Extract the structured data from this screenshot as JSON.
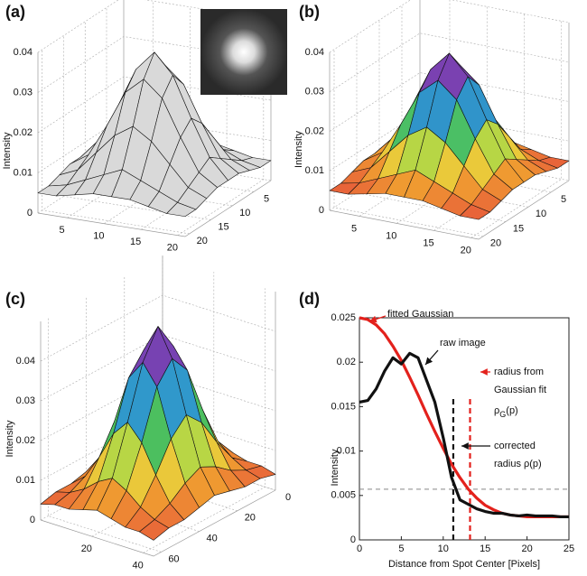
{
  "chart_data": [
    {
      "type": "surface3d",
      "label": "(a)",
      "zlabel": "Intensity",
      "surface_color": "#d9d9d9",
      "x": [
        1,
        3.5,
        6,
        8.5,
        11,
        13.5,
        16,
        18.5,
        21
      ],
      "y": [
        1,
        3.5,
        6,
        8.5,
        11,
        13.5,
        16,
        18.5,
        21
      ],
      "xlim": [
        1,
        21
      ],
      "ylim": [
        1,
        21
      ],
      "zlim": [
        0,
        0.04
      ],
      "xticks": [
        5,
        10,
        15,
        20
      ],
      "yticks": [
        5,
        10,
        15,
        20
      ],
      "zticks": [
        0,
        0.01,
        0.02,
        0.03,
        0.04
      ],
      "z": [
        [
          0.005,
          0.005,
          0.006,
          0.007,
          0.007,
          0.007,
          0.006,
          0.005,
          0.005
        ],
        [
          0.005,
          0.006,
          0.008,
          0.01,
          0.012,
          0.01,
          0.008,
          0.006,
          0.005
        ],
        [
          0.006,
          0.008,
          0.013,
          0.018,
          0.021,
          0.018,
          0.013,
          0.008,
          0.006
        ],
        [
          0.007,
          0.01,
          0.018,
          0.027,
          0.031,
          0.027,
          0.018,
          0.01,
          0.007
        ],
        [
          0.007,
          0.012,
          0.021,
          0.031,
          0.036,
          0.031,
          0.021,
          0.012,
          0.007
        ],
        [
          0.007,
          0.01,
          0.018,
          0.027,
          0.031,
          0.027,
          0.018,
          0.01,
          0.007
        ],
        [
          0.006,
          0.008,
          0.013,
          0.018,
          0.021,
          0.018,
          0.013,
          0.008,
          0.006
        ],
        [
          0.005,
          0.006,
          0.008,
          0.01,
          0.012,
          0.01,
          0.008,
          0.006,
          0.005
        ],
        [
          0.005,
          0.005,
          0.006,
          0.007,
          0.007,
          0.007,
          0.006,
          0.005,
          0.005
        ]
      ]
    },
    {
      "type": "surface3d",
      "label": "(b)",
      "zlabel": "Intensity",
      "colormap": [
        "#e8603a",
        "#f0a030",
        "#e6e040",
        "#50c050",
        "#30b8d0",
        "#3050c0",
        "#8040b0",
        "#e040a0"
      ],
      "x": [
        1,
        3.5,
        6,
        8.5,
        11,
        13.5,
        16,
        18.5,
        21
      ],
      "y": [
        1,
        3.5,
        6,
        8.5,
        11,
        13.5,
        16,
        18.5,
        21
      ],
      "xlim": [
        1,
        21
      ],
      "ylim": [
        1,
        21
      ],
      "zlim": [
        0,
        0.04
      ],
      "xticks": [
        5,
        10,
        15,
        20
      ],
      "yticks": [
        5,
        10,
        15,
        20
      ],
      "zticks": [
        0,
        0.01,
        0.02,
        0.03,
        0.04
      ],
      "z": [
        [
          0.005,
          0.005,
          0.006,
          0.007,
          0.007,
          0.007,
          0.006,
          0.005,
          0.005
        ],
        [
          0.005,
          0.006,
          0.008,
          0.01,
          0.012,
          0.01,
          0.008,
          0.006,
          0.005
        ],
        [
          0.006,
          0.008,
          0.013,
          0.018,
          0.021,
          0.018,
          0.013,
          0.008,
          0.006
        ],
        [
          0.007,
          0.01,
          0.018,
          0.027,
          0.031,
          0.027,
          0.018,
          0.01,
          0.007
        ],
        [
          0.007,
          0.012,
          0.021,
          0.031,
          0.036,
          0.031,
          0.021,
          0.012,
          0.007
        ],
        [
          0.007,
          0.01,
          0.018,
          0.027,
          0.031,
          0.027,
          0.018,
          0.01,
          0.007
        ],
        [
          0.006,
          0.008,
          0.013,
          0.018,
          0.021,
          0.018,
          0.013,
          0.008,
          0.006
        ],
        [
          0.005,
          0.006,
          0.008,
          0.01,
          0.012,
          0.01,
          0.008,
          0.006,
          0.005
        ],
        [
          0.005,
          0.005,
          0.006,
          0.007,
          0.007,
          0.007,
          0.006,
          0.005,
          0.005
        ]
      ]
    },
    {
      "type": "surface3d",
      "label": "(c)",
      "zlabel": "Intensity",
      "colormap": [
        "#e8603a",
        "#f0a030",
        "#e6e040",
        "#50c050",
        "#30b8d0",
        "#3050c0",
        "#8040b0",
        "#e040a0"
      ],
      "x": [
        0,
        5.5,
        11,
        16.5,
        22,
        27.5,
        33,
        38.5,
        44
      ],
      "y": [
        0,
        8,
        16,
        24,
        32,
        40,
        48,
        56,
        64
      ],
      "xlim": [
        0,
        44
      ],
      "ylim": [
        0,
        64
      ],
      "zlim": [
        0,
        0.05
      ],
      "xticks": [
        20,
        40
      ],
      "yticks": [
        0,
        20,
        40,
        60
      ],
      "zticks": [
        0,
        0.01,
        0.02,
        0.03,
        0.04
      ],
      "z": [
        [
          0.004,
          0.005,
          0.005,
          0.006,
          0.007,
          0.006,
          0.005,
          0.005,
          0.004
        ],
        [
          0.005,
          0.006,
          0.008,
          0.011,
          0.013,
          0.011,
          0.008,
          0.006,
          0.005
        ],
        [
          0.005,
          0.008,
          0.014,
          0.021,
          0.025,
          0.021,
          0.014,
          0.008,
          0.005
        ],
        [
          0.006,
          0.011,
          0.021,
          0.033,
          0.038,
          0.033,
          0.021,
          0.011,
          0.006
        ],
        [
          0.007,
          0.013,
          0.025,
          0.038,
          0.045,
          0.038,
          0.025,
          0.013,
          0.007
        ],
        [
          0.006,
          0.011,
          0.021,
          0.033,
          0.038,
          0.033,
          0.021,
          0.011,
          0.006
        ],
        [
          0.005,
          0.008,
          0.014,
          0.021,
          0.025,
          0.021,
          0.014,
          0.008,
          0.005
        ],
        [
          0.005,
          0.006,
          0.008,
          0.011,
          0.013,
          0.011,
          0.008,
          0.006,
          0.005
        ],
        [
          0.004,
          0.005,
          0.005,
          0.006,
          0.007,
          0.006,
          0.005,
          0.005,
          0.004
        ]
      ]
    },
    {
      "type": "line",
      "label": "(d)",
      "xlabel": "Distance from Spot Center [Pixels]",
      "ylabel": "Intensity",
      "x": [
        0,
        1,
        2,
        3,
        4,
        5,
        6,
        7,
        8,
        9,
        10,
        11,
        12,
        13,
        14,
        15,
        16,
        17,
        18,
        19,
        20,
        21,
        22,
        23,
        24,
        25
      ],
      "xlim": [
        0,
        25
      ],
      "ylim": [
        0,
        0.025
      ],
      "xticks": [
        0,
        5,
        10,
        15,
        20,
        25
      ],
      "yticks": [
        0,
        0.005,
        0.01,
        0.015,
        0.02,
        0.025
      ],
      "series": [
        {
          "name": "fitted Gaussian",
          "color": "#e3211c",
          "values": [
            0.025,
            0.0248,
            0.0242,
            0.0232,
            0.0218,
            0.0202,
            0.0183,
            0.0163,
            0.0142,
            0.0122,
            0.0103,
            0.0085,
            0.007,
            0.0057,
            0.0047,
            0.0039,
            0.0034,
            0.003,
            0.0028,
            0.0027,
            0.0026,
            0.0026,
            0.0026,
            0.0026,
            0.0026,
            0.0026
          ]
        },
        {
          "name": "raw image",
          "color": "#111111",
          "values": [
            0.0155,
            0.0157,
            0.017,
            0.019,
            0.0205,
            0.0198,
            0.021,
            0.0205,
            0.018,
            0.0155,
            0.0115,
            0.007,
            0.0045,
            0.004,
            0.0035,
            0.0032,
            0.003,
            0.003,
            0.0028,
            0.0027,
            0.0028,
            0.0027,
            0.0027,
            0.0027,
            0.0026,
            0.0026
          ]
        }
      ],
      "vlines": [
        {
          "x": 11.2,
          "color": "#111111"
        },
        {
          "x": 13.2,
          "color": "#e3211c"
        }
      ],
      "hline": {
        "y": 0.0057,
        "color": "#888888"
      },
      "annotations": [
        {
          "lines": [
            "fitted Gaussian"
          ],
          "color": "#e3211c"
        },
        {
          "lines": [
            "raw image"
          ],
          "color": "#111111"
        },
        {
          "lines": [
            "radius from",
            "Gaussian fit"
          ],
          "symbol": "ρ",
          "subscript": "G",
          "suffix": "(p)",
          "color": "#e3211c"
        },
        {
          "lines": [
            "corrected",
            "radius ρ(p)"
          ],
          "color": "#111111"
        }
      ]
    }
  ]
}
